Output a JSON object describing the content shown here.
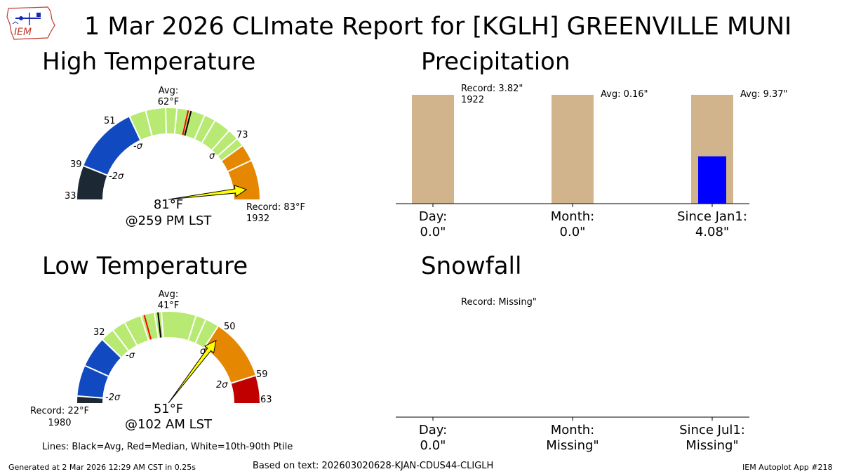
{
  "title": "1 Mar 2026 CLImate Report for [KGLH] GREENVILLE MUNI",
  "logo_text": "IEM",
  "high_temp": {
    "panel_title": "High Temperature",
    "avg_label": "Avg:",
    "avg_value": "62°F",
    "observed": "81°F",
    "observed_time": "@259 PM LST",
    "record_label": "Record: 83°F",
    "record_year": "1932",
    "tick_labels": [
      "33",
      "39",
      "51",
      "73"
    ],
    "sigma_labels": [
      "-2σ",
      "-σ",
      "σ"
    ],
    "range_min": 33,
    "range_max": 83,
    "avg": 62,
    "median": 61.5,
    "value": 81,
    "bands": [
      {
        "from": 33,
        "to": 39,
        "color": "#1c2833"
      },
      {
        "from": 39,
        "to": 51,
        "color": "#1049c0"
      },
      {
        "from": 51,
        "to": 73,
        "color": "#b7e973"
      },
      {
        "from": 73,
        "to": 76,
        "color": "#e58700"
      },
      {
        "from": 76,
        "to": 83,
        "color": "#e58700"
      }
    ],
    "percentile_lines": [
      51,
      54,
      57.5,
      59.5,
      64.5,
      66.5,
      69.5,
      71.5
    ],
    "band_edges": [
      39,
      51,
      73,
      76
    ]
  },
  "low_temp": {
    "panel_title": "Low Temperature",
    "avg_label": "Avg:",
    "avg_value": "41°F",
    "observed": "51°F",
    "observed_time": "@102 AM LST",
    "record_label": "Record: 22°F",
    "record_year": "1980",
    "tick_labels": [
      "32",
      "50",
      "59",
      "63"
    ],
    "sigma_labels": [
      "-2σ",
      "-σ",
      "σ",
      "2σ"
    ],
    "range_min": 22,
    "range_max": 63,
    "avg": 41,
    "median": 39,
    "value": 51,
    "bands": [
      {
        "from": 22,
        "to": 23,
        "color": "#1c2833"
      },
      {
        "from": 23,
        "to": 32,
        "color": "#1049c0"
      },
      {
        "from": 32,
        "to": 50,
        "color": "#b7e973"
      },
      {
        "from": 50,
        "to": 59,
        "color": "#e58700"
      },
      {
        "from": 59,
        "to": 63,
        "color": "#c00000"
      }
    ],
    "percentile_lines": [
      27.5,
      32,
      34,
      36,
      38.5,
      40.5,
      41.5,
      46.5,
      48
    ],
    "band_edges": [
      23,
      32,
      50,
      59
    ]
  },
  "legend_note": "Lines: Black=Avg, Red=Median, White=10th-90th Ptile",
  "precip": {
    "panel_title": "Precipitation",
    "colors": {
      "avg_bar": "#d2b48c",
      "obs_bar": "#0000ff"
    },
    "bars": [
      {
        "label": "Day:",
        "value_text": "0.0\"",
        "annotation": "Record: 3.82\"",
        "annotation2": "1922",
        "obs_fraction": 0.0
      },
      {
        "label": "Month:",
        "value_text": "0.0\"",
        "annotation": "Avg: 0.16\"",
        "annotation2": "",
        "obs_fraction": 0.0
      },
      {
        "label": "Since Jan1:",
        "value_text": "4.08\"",
        "annotation": "Avg: 9.37\"",
        "annotation2": "",
        "obs_fraction": 0.435
      }
    ]
  },
  "snow": {
    "panel_title": "Snowfall",
    "annotation": "Record: Missing\"",
    "bars": [
      {
        "label": "Day:",
        "value_text": "0.0\""
      },
      {
        "label": "Month:",
        "value_text": "Missing\""
      },
      {
        "label": "Since Jul1:",
        "value_text": "Missing\""
      }
    ]
  },
  "footer_left": "Generated at 2 Mar 2026 12:29 AM CST in 0.25s",
  "footer_center": "Based on text: 202603020628-KJAN-CDUS44-CLIGLH",
  "footer_right": "IEM Autoplot App #218",
  "chart_data": [
    {
      "type": "gauge",
      "title": "High Temperature",
      "range": [
        33,
        83
      ],
      "avg": 62,
      "observed": 81,
      "record": 83
    },
    {
      "type": "gauge",
      "title": "Low Temperature",
      "range": [
        22,
        63
      ],
      "avg": 41,
      "observed": 51,
      "record": 22
    },
    {
      "type": "bar",
      "title": "Precipitation",
      "categories": [
        "Day:",
        "Month:",
        "Since Jan1:"
      ],
      "series": [
        {
          "values": [
            3.82,
            0.16,
            9.37
          ]
        },
        {
          "values": [
            0.0,
            0.0,
            4.08
          ]
        }
      ]
    },
    {
      "type": "bar",
      "title": "Snowfall",
      "categories": [
        "Day:",
        "Month:",
        "Since Jul1:"
      ],
      "series": [
        {
          "values": [
            0.0,
            null,
            null
          ]
        }
      ]
    }
  ]
}
